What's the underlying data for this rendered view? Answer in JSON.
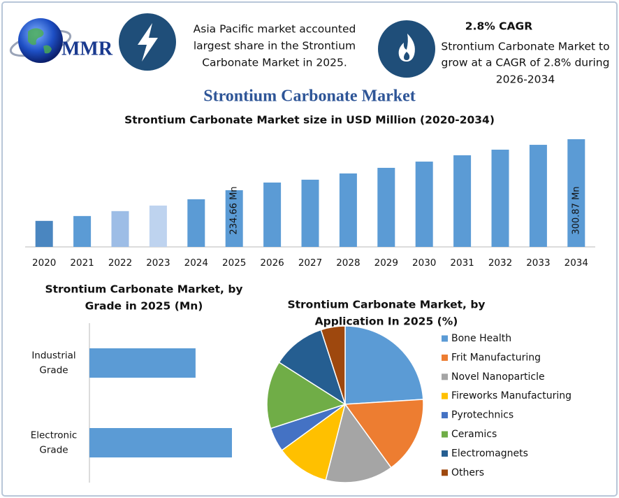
{
  "header": {
    "logo": "MMR",
    "info_left": [
      "Asia Pacific market accounted",
      "largest share in the Strontium",
      "Carbonate Market in 2025."
    ],
    "info_right_title": "2.8% CAGR",
    "info_right": [
      "Strontium Carbonate Market to",
      "grow at a CAGR of 2.8% during",
      "2026-2034"
    ],
    "title": "Strontium Carbonate Market"
  },
  "chart_data": [
    {
      "type": "bar",
      "title": "Strontium Carbonate Market size in USD Million (2020-2034)",
      "categories": [
        "2020",
        "2021",
        "2022",
        "2023",
        "2024",
        "2025",
        "2026",
        "2027",
        "2028",
        "2029",
        "2030",
        "2031",
        "2032",
        "2033",
        "2034"
      ],
      "values": [
        194.8,
        201.1,
        207.5,
        214.7,
        222.9,
        234.66,
        244.6,
        248.3,
        256.4,
        263.7,
        271.8,
        280.0,
        287.3,
        293.6,
        300.87
      ],
      "value_labels": [
        null,
        null,
        null,
        null,
        null,
        "234.66 Mn",
        null,
        null,
        null,
        null,
        null,
        null,
        null,
        null,
        "300.87 Mn"
      ],
      "colors": [
        "#4a86c0",
        "#5b9bd5",
        "#9dbde6",
        "#bed3ef",
        "#5b9bd5",
        "#5b9bd5",
        "#5b9bd5",
        "#5b9bd5",
        "#5b9bd5",
        "#5b9bd5",
        "#5b9bd5",
        "#5b9bd5",
        "#5b9bd5",
        "#5b9bd5",
        "#5b9bd5"
      ],
      "ylim": [
        161,
        310
      ]
    },
    {
      "type": "bar",
      "orientation": "horizontal",
      "title": [
        "Strontium Carbonate Market, by",
        "Grade in 2025 (Mn)"
      ],
      "categories": [
        "Industrial Grade",
        "Electronic Grade"
      ],
      "values": [
        140,
        188
      ],
      "color": "#5b9bd5",
      "xlim": [
        0,
        200
      ]
    },
    {
      "type": "pie",
      "title": [
        "Strontium Carbonate Market, by",
        "Application In 2025 (%)"
      ],
      "categories": [
        "Bone Health",
        "Frit Manufacturing",
        "Novel Nanoparticle",
        "Fireworks Manufacturing",
        "Pyrotechnics",
        "Ceramics",
        "Electromagnets",
        "Others"
      ],
      "values": [
        24,
        16,
        14,
        11,
        5,
        14,
        11,
        5
      ],
      "colors": [
        "#5b9bd5",
        "#ed7d31",
        "#a5a5a5",
        "#ffc000",
        "#4472c4",
        "#70ad47",
        "#255e91",
        "#9e480e"
      ],
      "legend": "right"
    }
  ]
}
